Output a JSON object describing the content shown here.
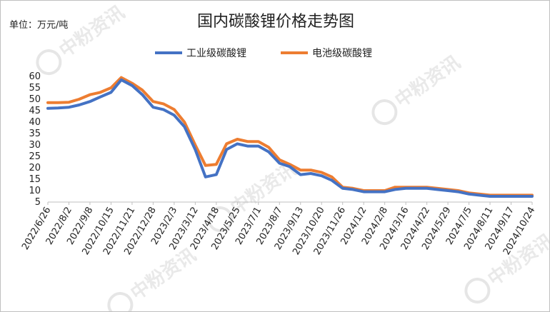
{
  "chart_data": {
    "type": "line",
    "title": "国内碳酸锂价格走势图",
    "unit_label": "单位：万元/吨",
    "ylim": [
      5,
      60
    ],
    "yticks": [
      5,
      10,
      15,
      20,
      25,
      30,
      35,
      40,
      45,
      50,
      55,
      60
    ],
    "grid": false,
    "legend_position": "top",
    "x_tick_labels": [
      "2022/6/26",
      "2022/8/2",
      "2022/9/8",
      "2022/10/15",
      "2022/11/21",
      "2022/12/28",
      "2023/2/3",
      "2023/3/12",
      "2023/4/18",
      "2023/5/25",
      "2023/7/1",
      "2023/8/7",
      "2023/9/13",
      "2023/10/20",
      "2023/11/26",
      "2024/1/2",
      "2024/2/8",
      "2024/3/16",
      "2024/4/22",
      "2024/5/29",
      "2024/7/5",
      "2024/8/11",
      "2024/9/17",
      "2024/10/24"
    ],
    "x": [
      "2022/6/26",
      "2022/7/14",
      "2022/8/2",
      "2022/8/20",
      "2022/9/8",
      "2022/9/26",
      "2022/10/15",
      "2022/11/2",
      "2022/11/21",
      "2022/12/9",
      "2022/12/28",
      "2023/1/15",
      "2023/2/3",
      "2023/2/21",
      "2023/3/12",
      "2023/3/30",
      "2023/4/18",
      "2023/5/6",
      "2023/5/25",
      "2023/6/12",
      "2023/7/1",
      "2023/7/19",
      "2023/8/7",
      "2023/8/25",
      "2023/9/13",
      "2023/10/1",
      "2023/10/20",
      "2023/11/7",
      "2023/11/26",
      "2023/12/14",
      "2024/1/2",
      "2024/1/20",
      "2024/2/8",
      "2024/2/26",
      "2024/3/16",
      "2024/4/3",
      "2024/4/22",
      "2024/5/10",
      "2024/5/29",
      "2024/6/16",
      "2024/7/5",
      "2024/7/23",
      "2024/8/11",
      "2024/8/29",
      "2024/9/17",
      "2024/10/5",
      "2024/10/24"
    ],
    "series": [
      {
        "name": "工业级碳酸锂",
        "color": "#4472c4",
        "values": [
          46,
          46.2,
          46.5,
          47.5,
          49,
          51,
          53,
          58.5,
          56,
          52,
          46.5,
          45.5,
          43,
          38,
          28,
          16,
          17,
          28,
          30.5,
          29.5,
          29.5,
          27,
          22,
          20.5,
          17,
          17.5,
          16.5,
          14.5,
          11,
          10.5,
          9.5,
          9.5,
          9.5,
          10.5,
          11,
          11,
          11,
          10.5,
          10,
          9.5,
          8.5,
          8,
          7.5,
          7.5,
          7.5,
          7.5,
          7.5
        ]
      },
      {
        "name": "电池级碳酸锂",
        "color": "#ed7d31",
        "values": [
          48.5,
          48.5,
          48.7,
          50,
          52,
          53,
          55,
          59.5,
          57,
          54,
          49,
          48,
          45.5,
          40,
          30,
          21,
          21.5,
          30.5,
          32.5,
          31.5,
          31.5,
          29,
          23.5,
          21.5,
          19,
          19,
          18,
          16,
          11.5,
          11,
          10,
          10,
          10,
          11.5,
          11.5,
          11.5,
          11.5,
          11,
          10.5,
          10,
          9,
          8.5,
          8,
          8,
          8,
          8,
          8
        ]
      }
    ]
  },
  "watermark": {
    "brand": "中粉资讯",
    "logo_icon": "p-logo-icon"
  }
}
